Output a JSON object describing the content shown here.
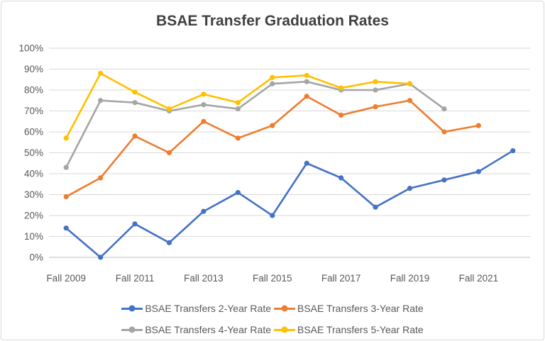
{
  "chart_data": {
    "type": "line",
    "title": "BSAE Transfer Graduation Rates",
    "categories": [
      "Fall 2009",
      "Fall 2010",
      "Fall 2011",
      "Fall 2012",
      "Fall 2013",
      "Fall 2014",
      "Fall 2015",
      "Fall 2016",
      "Fall 2017",
      "Fall 2018",
      "Fall 2019",
      "Fall 2020",
      "Fall 2021",
      "Fall 2022"
    ],
    "x_tick_labels_shown": [
      "Fall 2009",
      "Fall 2011",
      "Fall 2013",
      "Fall 2015",
      "Fall 2017",
      "Fall 2019",
      "Fall 2021"
    ],
    "y_axis": {
      "min": 0,
      "max": 100,
      "step": 10,
      "tick_labels": [
        "0%",
        "10%",
        "20%",
        "30%",
        "40%",
        "50%",
        "60%",
        "70%",
        "80%",
        "90%",
        "100%"
      ]
    },
    "grid": true,
    "legend_position": "bottom",
    "colors": {
      "gridline": "#D9D9D9",
      "axis_line": "#BFBFBF",
      "tick_text": "#595959",
      "title_text": "#404040",
      "legend_text": "#595959"
    },
    "series": [
      {
        "name": "BSAE Transfers 2-Year Rate",
        "color": "#4472C4",
        "values": [
          14,
          0,
          16,
          7,
          22,
          31,
          20,
          45,
          38,
          24,
          33,
          37,
          41,
          51
        ]
      },
      {
        "name": "BSAE Transfers 3-Year Rate",
        "color": "#ED7D31",
        "values": [
          29,
          38,
          58,
          50,
          65,
          57,
          63,
          77,
          68,
          72,
          75,
          60,
          63
        ]
      },
      {
        "name": "BSAE Transfers 4-Year Rate",
        "color": "#A5A5A5",
        "values": [
          43,
          75,
          74,
          70,
          73,
          71,
          83,
          84,
          80,
          80,
          83,
          71
        ]
      },
      {
        "name": "BSAE Transfers 5-Year Rate",
        "color": "#FFC000",
        "values": [
          57,
          88,
          79,
          71,
          78,
          74,
          86,
          87,
          81,
          84,
          83
        ]
      }
    ]
  }
}
